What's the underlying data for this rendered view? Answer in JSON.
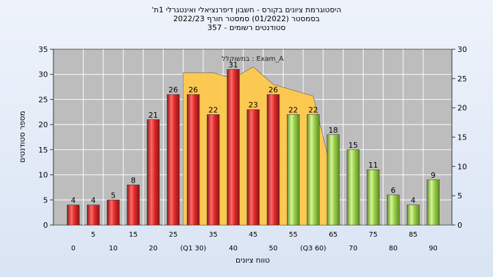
{
  "titles": {
    "line1": "היסטוגרמת ציונים בקורס - חשבון דיפרנציאלי ואינטגרלי 1ת'",
    "line2": "בסמסטר  (01/2022)  סמסטר חורף  2022/23",
    "line3": "סטודנטים רשומים - 357"
  },
  "chart_data": {
    "type": "bar",
    "categories": [
      "0",
      "5",
      "10",
      "15",
      "20",
      "25",
      "30",
      "35",
      "40",
      "45",
      "50",
      "55",
      "60",
      "65",
      "70",
      "75",
      "80",
      "85",
      "90"
    ],
    "tick_labels": [
      "0",
      "5",
      "10",
      "15",
      "20",
      "25",
      "(Q1 30)",
      "35",
      "40",
      "45",
      "50",
      "55",
      "(Q3 60)",
      "65",
      "70",
      "75",
      "80",
      "85",
      "90"
    ],
    "values": [
      4,
      4,
      5,
      8,
      21,
      26,
      26,
      22,
      31,
      23,
      26,
      22,
      22,
      18,
      15,
      11,
      6,
      4,
      9
    ],
    "bar_colors": [
      "#d42c2c",
      "#d42c2c",
      "#d42c2c",
      "#d42c2c",
      "#d42c2c",
      "#d42c2c",
      "#d42c2c",
      "#d42c2c",
      "#d42c2c",
      "#d42c2c",
      "#d42c2c",
      "#9ccf4a",
      "#9ccf4a",
      "#9ccf4a",
      "#9ccf4a",
      "#9ccf4a",
      "#9ccf4a",
      "#9ccf4a",
      "#9ccf4a"
    ],
    "area_series": {
      "name": "Exam_A : במשוקלל",
      "x": [
        "30",
        "35",
        "40",
        "45",
        "50",
        "60",
        "65"
      ],
      "values": [
        26,
        26,
        25,
        27,
        24,
        22,
        8
      ],
      "color": "#ffc94d"
    },
    "xlabel": "טווח ציונים",
    "ylabel": "מספר סטודנטים",
    "ylim": [
      0,
      35
    ],
    "yticks": [
      0,
      5,
      10,
      15,
      20,
      25,
      30,
      35
    ],
    "y2lim": [
      0,
      30
    ],
    "y2ticks": [
      0,
      5,
      10,
      15,
      20,
      25,
      30
    ],
    "grid": true,
    "plot_background": "#bdbdbd"
  }
}
